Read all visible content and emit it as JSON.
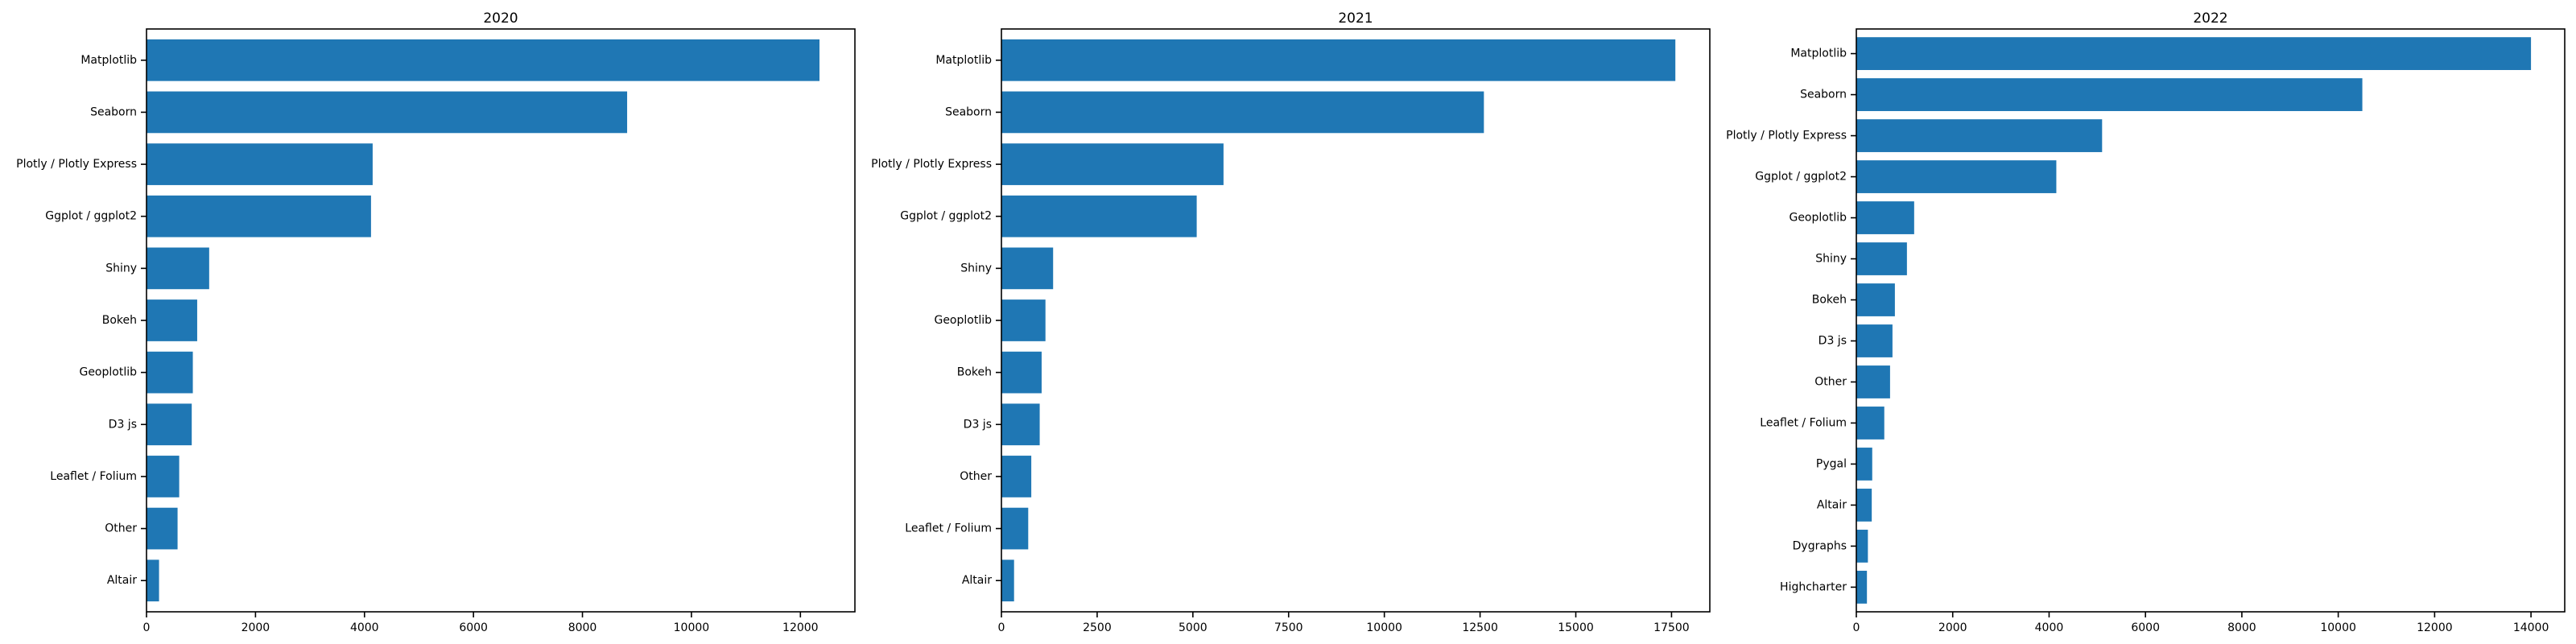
{
  "chart_data": [
    {
      "type": "bar",
      "orientation": "horizontal",
      "title": "2020",
      "categories": [
        "Matplotlib",
        "Seaborn",
        "Plotly / Plotly Express",
        "Ggplot / ggplot2",
        "Shiny",
        "Bokeh",
        "Geoplotlib",
        "D3 js",
        "Leaflet / Folium",
        "Other",
        "Altair"
      ],
      "values": [
        12350,
        8820,
        4150,
        4120,
        1150,
        930,
        850,
        830,
        600,
        570,
        230
      ],
      "xlim": [
        0,
        13000
      ],
      "xticks": [
        0,
        2000,
        4000,
        6000,
        8000,
        10000,
        12000
      ],
      "xtick_labels": [
        "0",
        "2000",
        "4000",
        "6000",
        "8000",
        "10000",
        "12000"
      ],
      "color": "#1f77b4",
      "grid": false
    },
    {
      "type": "bar",
      "orientation": "horizontal",
      "title": "2021",
      "categories": [
        "Matplotlib",
        "Seaborn",
        "Plotly / Plotly Express",
        "Ggplot / ggplot2",
        "Shiny",
        "Geoplotlib",
        "Bokeh",
        "D3 js",
        "Other",
        "Leaflet / Folium",
        "Altair"
      ],
      "values": [
        17600,
        12600,
        5800,
        5100,
        1350,
        1150,
        1050,
        1000,
        780,
        700,
        330
      ],
      "xlim": [
        0,
        18500
      ],
      "xticks": [
        0,
        2500,
        5000,
        7500,
        10000,
        12500,
        15000,
        17500
      ],
      "xtick_labels": [
        "0",
        "2500",
        "5000",
        "7500",
        "10000",
        "12500",
        "15000",
        "17500"
      ],
      "color": "#1f77b4",
      "grid": false
    },
    {
      "type": "bar",
      "orientation": "horizontal",
      "title": "2022",
      "categories": [
        "Matplotlib",
        "Seaborn",
        "Plotly / Plotly Express",
        "Ggplot / ggplot2",
        "Geoplotlib",
        "Shiny",
        "Bokeh",
        "D3 js",
        "Other",
        "Leaflet / Folium",
        "Pygal",
        "Altair",
        "Dygraphs",
        "Highcharter"
      ],
      "values": [
        14000,
        10500,
        5100,
        4150,
        1200,
        1050,
        800,
        750,
        700,
        580,
        330,
        320,
        240,
        220
      ],
      "xlim": [
        0,
        14700
      ],
      "xticks": [
        0,
        2000,
        4000,
        6000,
        8000,
        10000,
        12000,
        14000
      ],
      "xtick_labels": [
        "0",
        "2000",
        "4000",
        "6000",
        "8000",
        "10000",
        "12000",
        "14000"
      ],
      "color": "#1f77b4",
      "grid": false
    }
  ]
}
